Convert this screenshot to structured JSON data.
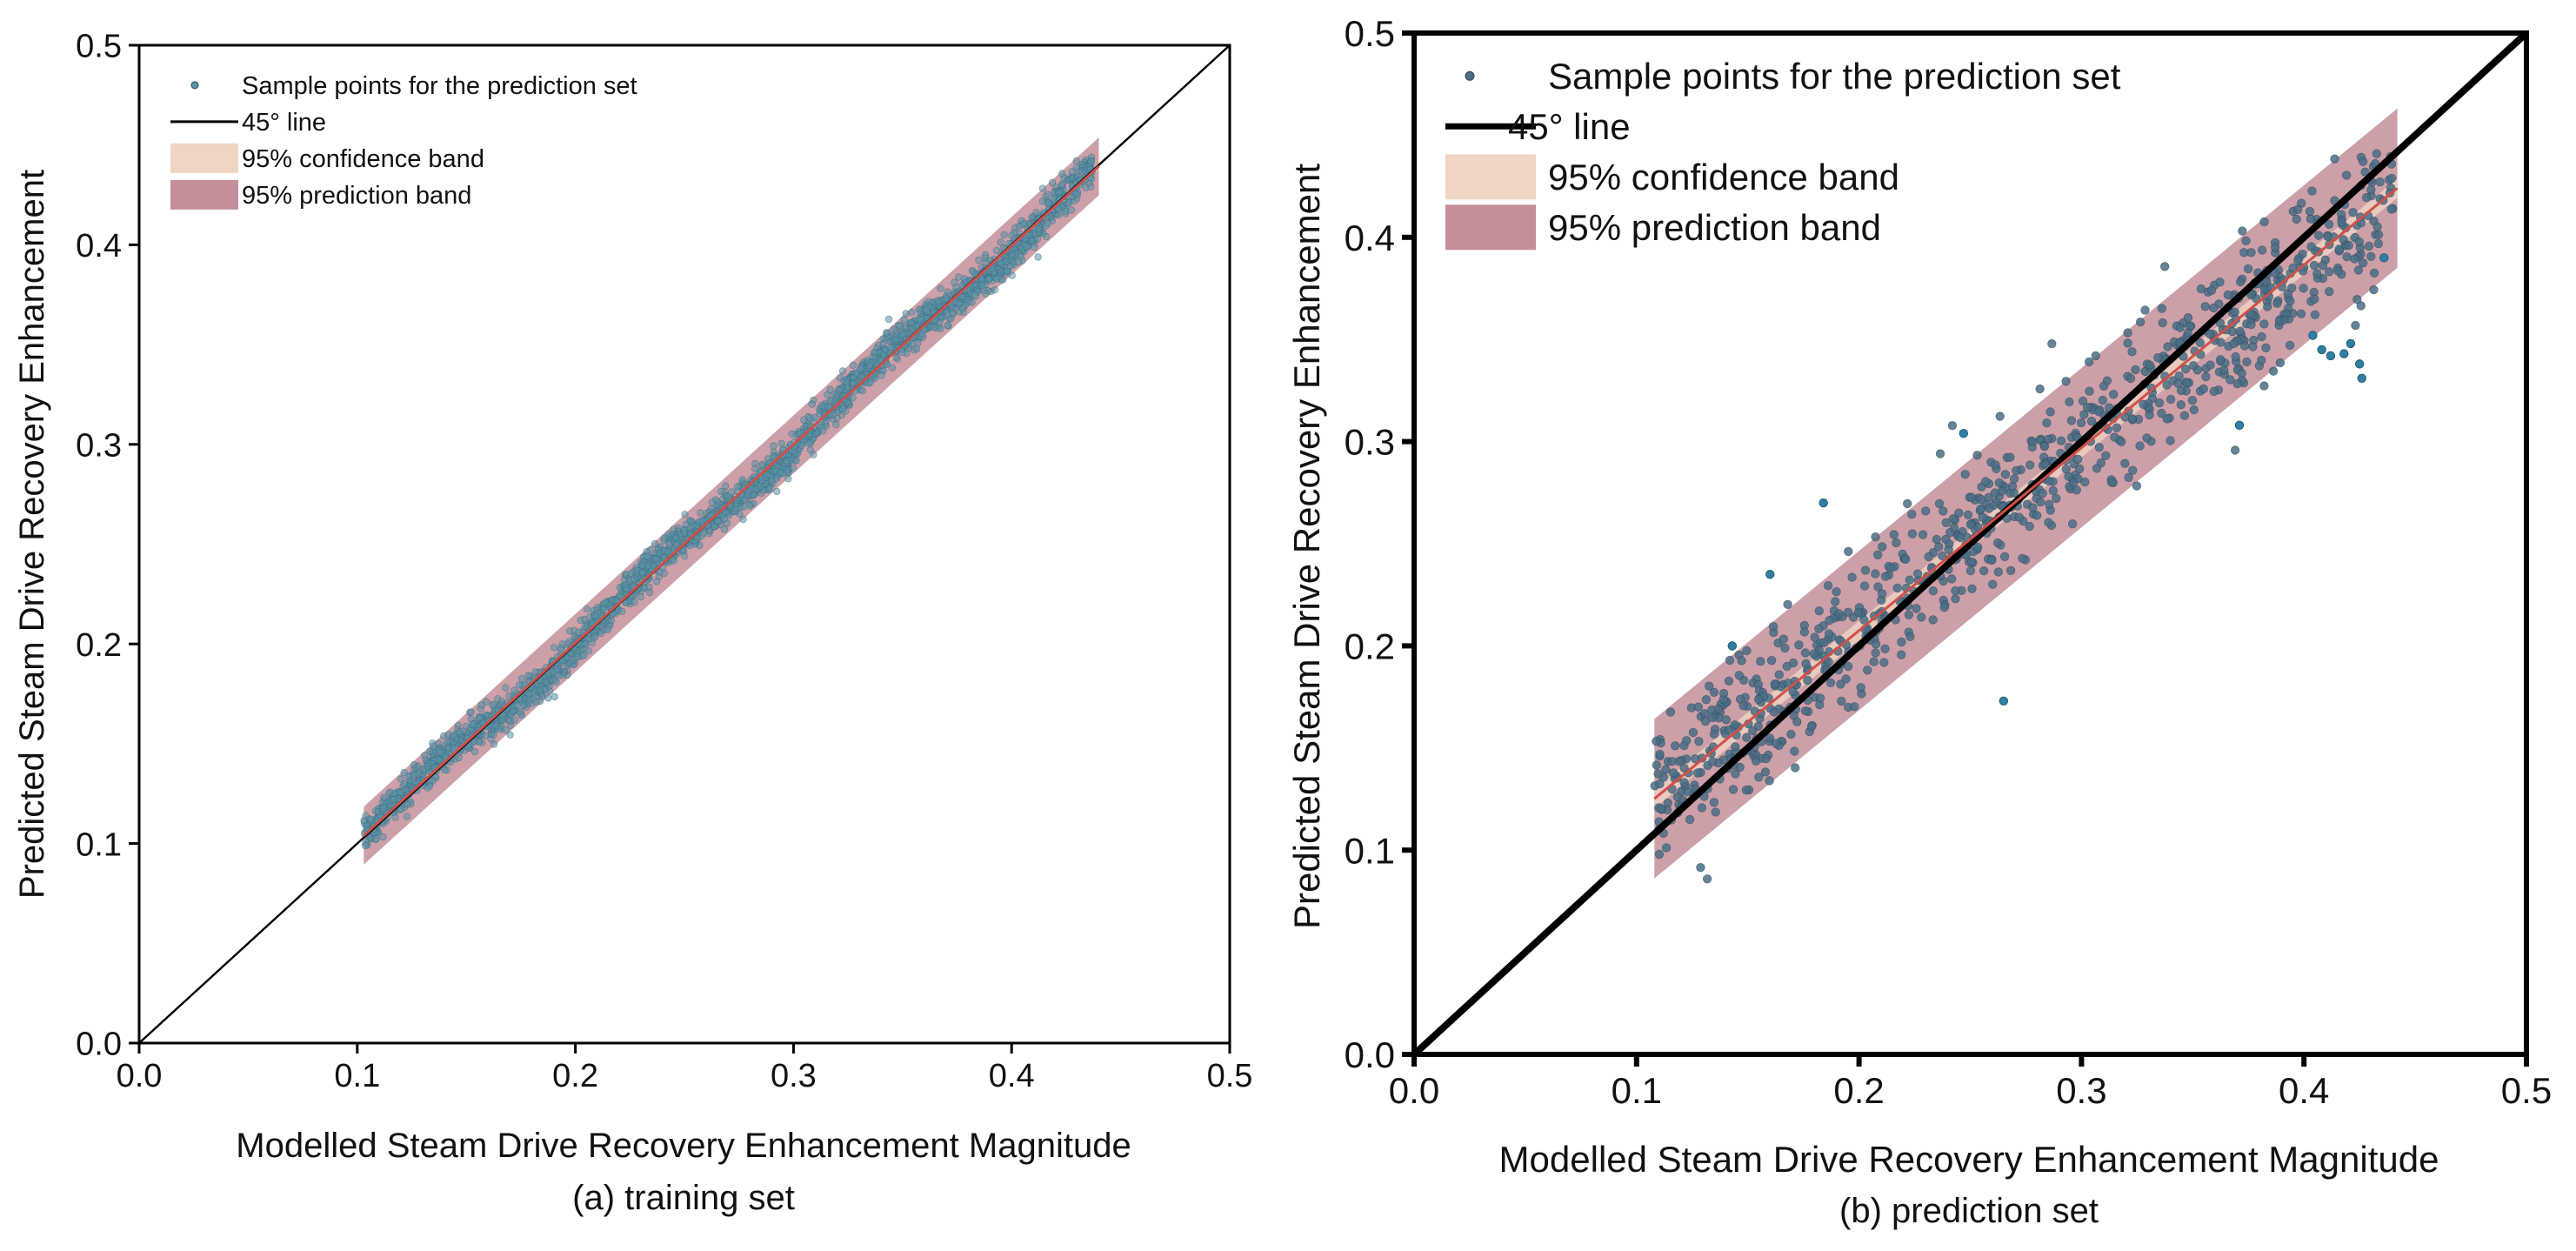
{
  "chart_data": [
    {
      "id": "a",
      "type": "scatter",
      "caption": "(a) training set",
      "xlabel": "Modelled Steam Drive Recovery Enhancement Magnitude",
      "ylabel": "Predicted Steam Drive Recovery Enhancement",
      "xlim": [
        0,
        0.5
      ],
      "ylim": [
        0,
        0.5
      ],
      "xticks": [
        0.0,
        0.1,
        0.2,
        0.3,
        0.4,
        0.5
      ],
      "yticks": [
        0.0,
        0.1,
        0.2,
        0.3,
        0.4,
        0.5
      ],
      "tick_labels": [
        "0.0",
        "0.1",
        "0.2",
        "0.3",
        "0.4",
        "0.5"
      ],
      "legend": {
        "position": "top-left",
        "entries": [
          {
            "key": "points",
            "label": "Sample points for the prediction set"
          },
          {
            "key": "line45",
            "label": "45° line"
          },
          {
            "key": "conf",
            "label": "95% confidence band"
          },
          {
            "key": "pred",
            "label": "95% prediction band"
          }
        ]
      },
      "fit": {
        "x_start": 0.103,
        "x_end": 0.44,
        "slope": 0.995,
        "intercept": 0.0015
      },
      "prediction_band_halfwidth": 0.0145,
      "points_summary": {
        "n_approx": 2500,
        "x_range": [
          0.103,
          0.437
        ],
        "spread": 0.0045
      },
      "colors": {
        "points": "#5b93a8",
        "fit": "#d0504a",
        "confidence": "#efd5c3",
        "prediction": "#c48f99",
        "line45": "#000000"
      }
    },
    {
      "id": "b",
      "type": "scatter",
      "caption": "(b) prediction set",
      "xlabel": "Modelled Steam Drive Recovery Enhancement Magnitude",
      "ylabel": "Predicted Steam Drive Recovery Enhancement",
      "xlim": [
        0,
        0.5
      ],
      "ylim": [
        0,
        0.5
      ],
      "xticks": [
        0.0,
        0.1,
        0.2,
        0.3,
        0.4,
        0.5
      ],
      "yticks": [
        0.0,
        0.1,
        0.2,
        0.3,
        0.4,
        0.5
      ],
      "tick_labels": [
        "0.0",
        "0.1",
        "0.2",
        "0.3",
        "0.4",
        "0.5"
      ],
      "legend": {
        "position": "top-left",
        "entries": [
          {
            "key": "points",
            "label": "Sample points for the prediction set"
          },
          {
            "key": "line45",
            "label": "45° line"
          },
          {
            "key": "conf",
            "label": "95% confidence band"
          },
          {
            "key": "pred",
            "label": "95% prediction band"
          }
        ]
      },
      "fit": {
        "x_start": 0.108,
        "x_end": 0.442,
        "slope": 0.895,
        "intercept": 0.0285
      },
      "prediction_band_halfwidth": 0.039,
      "points_summary": {
        "n_approx": 900,
        "x_range": [
          0.108,
          0.44
        ],
        "spread": 0.018
      },
      "colors": {
        "points": "#4a6f86",
        "fit": "#d0504a",
        "confidence": "#efd5c3",
        "prediction": "#c48f99",
        "line45": "#000000"
      }
    }
  ]
}
